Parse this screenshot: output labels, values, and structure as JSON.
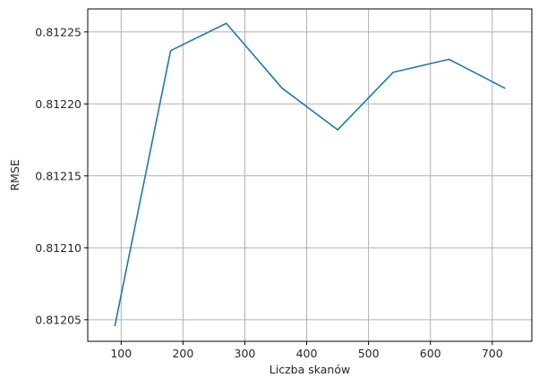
{
  "chart_data": {
    "type": "line",
    "title": "",
    "xlabel": "Liczba skanów",
    "ylabel": "RMSE",
    "xlim": [
      46,
      764
    ],
    "ylim": [
      0.812035,
      0.812266
    ],
    "xticks": [
      100,
      200,
      300,
      400,
      500,
      600,
      700
    ],
    "yticks": [
      0.81205,
      0.8121,
      0.81215,
      0.8122,
      0.81225
    ],
    "ytick_labels": [
      "0.81205",
      "0.81210",
      "0.81215",
      "0.81220",
      "0.81225"
    ],
    "grid": true,
    "series": [
      {
        "color": "#1f77b4",
        "x": [
          90,
          180,
          270,
          360,
          450,
          540,
          630,
          720
        ],
        "y": [
          0.812046,
          0.812237,
          0.812256,
          0.812211,
          0.812182,
          0.812222,
          0.812231,
          0.812211
        ]
      }
    ]
  }
}
